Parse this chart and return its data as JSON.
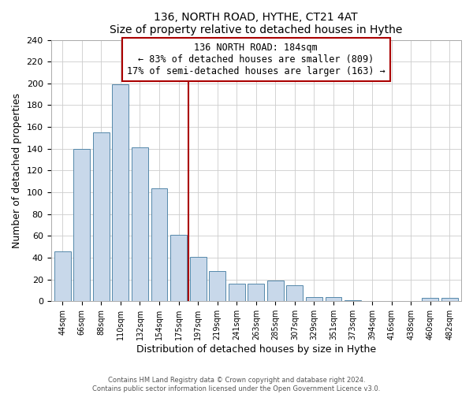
{
  "title": "136, NORTH ROAD, HYTHE, CT21 4AT",
  "subtitle": "Size of property relative to detached houses in Hythe",
  "xlabel": "Distribution of detached houses by size in Hythe",
  "ylabel": "Number of detached properties",
  "bar_labels": [
    "44sqm",
    "66sqm",
    "88sqm",
    "110sqm",
    "132sqm",
    "154sqm",
    "175sqm",
    "197sqm",
    "219sqm",
    "241sqm",
    "263sqm",
    "285sqm",
    "307sqm",
    "329sqm",
    "351sqm",
    "373sqm",
    "394sqm",
    "416sqm",
    "438sqm",
    "460sqm",
    "482sqm"
  ],
  "bar_values": [
    46,
    140,
    155,
    199,
    141,
    104,
    61,
    41,
    28,
    16,
    16,
    19,
    15,
    4,
    4,
    1,
    0,
    0,
    0,
    3,
    3
  ],
  "bar_color": "#c8d8ea",
  "bar_edgecolor": "#5588aa",
  "vline_x_index": 6.5,
  "vline_color": "#aa0000",
  "annotation_title": "136 NORTH ROAD: 184sqm",
  "annotation_line1": "← 83% of detached houses are smaller (809)",
  "annotation_line2": "17% of semi-detached houses are larger (163) →",
  "annotation_box_color": "#ffffff",
  "annotation_box_edgecolor": "#aa0000",
  "ylim": [
    0,
    240
  ],
  "yticks": [
    0,
    20,
    40,
    60,
    80,
    100,
    120,
    140,
    160,
    180,
    200,
    220,
    240
  ],
  "footer_line1": "Contains HM Land Registry data © Crown copyright and database right 2024.",
  "footer_line2": "Contains public sector information licensed under the Open Government Licence v3.0.",
  "bg_color": "#ffffff",
  "grid_color": "#cccccc"
}
